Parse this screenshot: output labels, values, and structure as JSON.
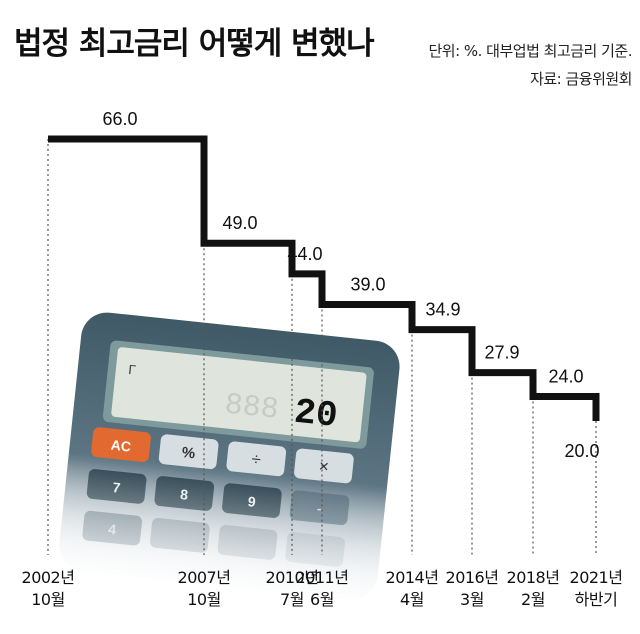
{
  "header": {
    "title": "법정 최고금리 어떻게 변했나",
    "unit": "단위: %. 대부업법 최고금리 기준.",
    "source": "자료: 금융위원회"
  },
  "calculator": {
    "display_value": "20",
    "ghost_digits": "888",
    "indicator": "Γ",
    "keys": [
      "AC",
      "%",
      "÷",
      "×",
      "7",
      "8",
      "9",
      "-",
      "4"
    ]
  },
  "chart_data": {
    "type": "line",
    "step": true,
    "x": [
      {
        "line1": "2002년",
        "line2": "10월"
      },
      {
        "line1": "2007년",
        "line2": "10월"
      },
      {
        "line1": "2010년",
        "line2": "7월"
      },
      {
        "line1": "2011년",
        "line2": "6월"
      },
      {
        "line1": "2014년",
        "line2": "4월"
      },
      {
        "line1": "2016년",
        "line2": "3월"
      },
      {
        "line1": "2018년",
        "line2": "2월"
      },
      {
        "line1": "2021년",
        "line2": "하반기"
      }
    ],
    "values": [
      66.0,
      49.0,
      44.0,
      39.0,
      34.9,
      27.9,
      24.0,
      20.0
    ],
    "value_labels": [
      "66.0",
      "49.0",
      "44.0",
      "39.0",
      "34.9",
      "27.9",
      "24.0",
      "20.0"
    ],
    "colors": {
      "line": "#111111",
      "guide": "#555555"
    }
  }
}
